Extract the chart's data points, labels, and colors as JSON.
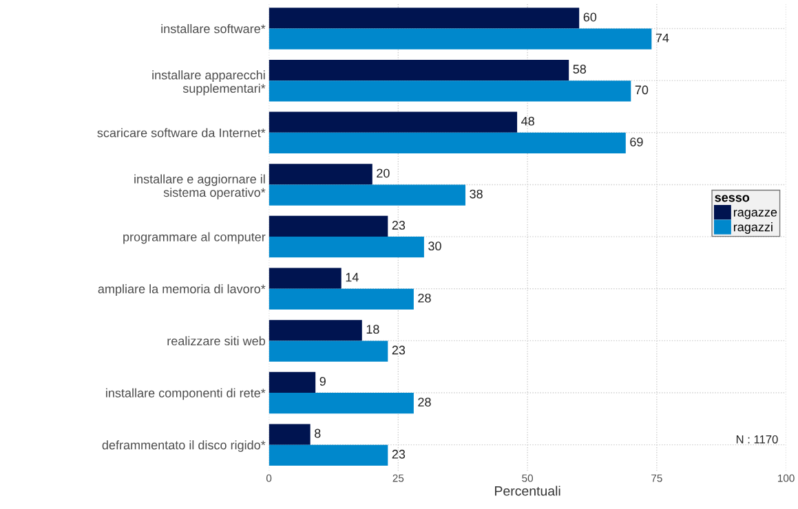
{
  "chart_data": {
    "type": "bar",
    "orientation": "horizontal",
    "categories": [
      "installare software*",
      "installare apparecchi\nsupplementari*",
      "scaricare software da Internet*",
      "installare e aggiornare il\nsistema operativo*",
      "programmare al computer",
      "ampliare la memoria di lavoro*",
      "realizzare siti web",
      "installare componenti di rete*",
      "deframmentato il disco rigido*"
    ],
    "series": [
      {
        "name": "ragazze",
        "color": "#001450",
        "values": [
          60,
          58,
          48,
          20,
          23,
          14,
          18,
          9,
          8
        ]
      },
      {
        "name": "ragazzi",
        "color": "#0088cc",
        "values": [
          74,
          70,
          69,
          38,
          30,
          28,
          23,
          28,
          23
        ]
      }
    ],
    "xlabel": "Percentuali",
    "xlim": [
      0,
      100
    ],
    "xticks": [
      0,
      25,
      50,
      75,
      100
    ],
    "legend_title": "sesso",
    "legend": "right",
    "grid": true,
    "data_labels": true,
    "annotations": [
      "N : 1170"
    ]
  }
}
